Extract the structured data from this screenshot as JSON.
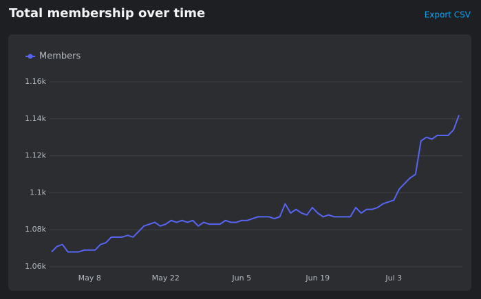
{
  "actions": [
    "Export CSV"
  ],
  "chart_data": {
    "type": "line",
    "title": "Total membership over time",
    "categories": [
      null,
      null,
      null,
      null,
      null,
      null,
      null,
      "May 8",
      null,
      null,
      null,
      null,
      null,
      null,
      null,
      null,
      null,
      null,
      null,
      null,
      null,
      "May 22",
      null,
      null,
      null,
      null,
      null,
      null,
      null,
      null,
      null,
      null,
      null,
      null,
      null,
      "Jun 5",
      null,
      null,
      null,
      null,
      null,
      null,
      null,
      null,
      null,
      null,
      null,
      null,
      null,
      "Jun 19",
      null,
      null,
      null,
      null,
      null,
      null,
      null,
      null,
      null,
      null,
      null,
      null,
      null,
      "Jul 3",
      null,
      null,
      null,
      null,
      null,
      null,
      null,
      null,
      null,
      null,
      null,
      null
    ],
    "series": [
      {
        "name": "Members",
        "color": "#5865f2",
        "values": [
          1068,
          1071,
          1072,
          1068,
          1068,
          1068,
          1069,
          1069,
          1069,
          1072,
          1073,
          1076,
          1076,
          1076,
          1077,
          1076,
          1079,
          1082,
          1083,
          1084,
          1082,
          1083,
          1085,
          1084,
          1085,
          1084,
          1085,
          1082,
          1084,
          1083,
          1083,
          1083,
          1085,
          1084,
          1084,
          1085,
          1085,
          1086,
          1087,
          1087,
          1087,
          1086,
          1087,
          1094,
          1089,
          1091,
          1089,
          1088,
          1092,
          1089,
          1087,
          1088,
          1087,
          1087,
          1087,
          1087,
          1092,
          1089,
          1091,
          1091,
          1092,
          1094,
          1095,
          1096,
          1102,
          1105,
          1108,
          1110,
          1128,
          1130,
          1129,
          1131,
          1131,
          1131,
          1134,
          1142
        ]
      }
    ],
    "ylim": [
      1060,
      1160
    ],
    "yticks": [
      {
        "value": 1060,
        "label": "1.06k"
      },
      {
        "value": 1080,
        "label": "1.08k"
      },
      {
        "value": 1100,
        "label": "1.1k"
      },
      {
        "value": 1120,
        "label": "1.12k"
      },
      {
        "value": 1140,
        "label": "1.14k"
      },
      {
        "value": 1160,
        "label": "1.16k"
      }
    ],
    "grid": true,
    "legend": "top-left"
  }
}
